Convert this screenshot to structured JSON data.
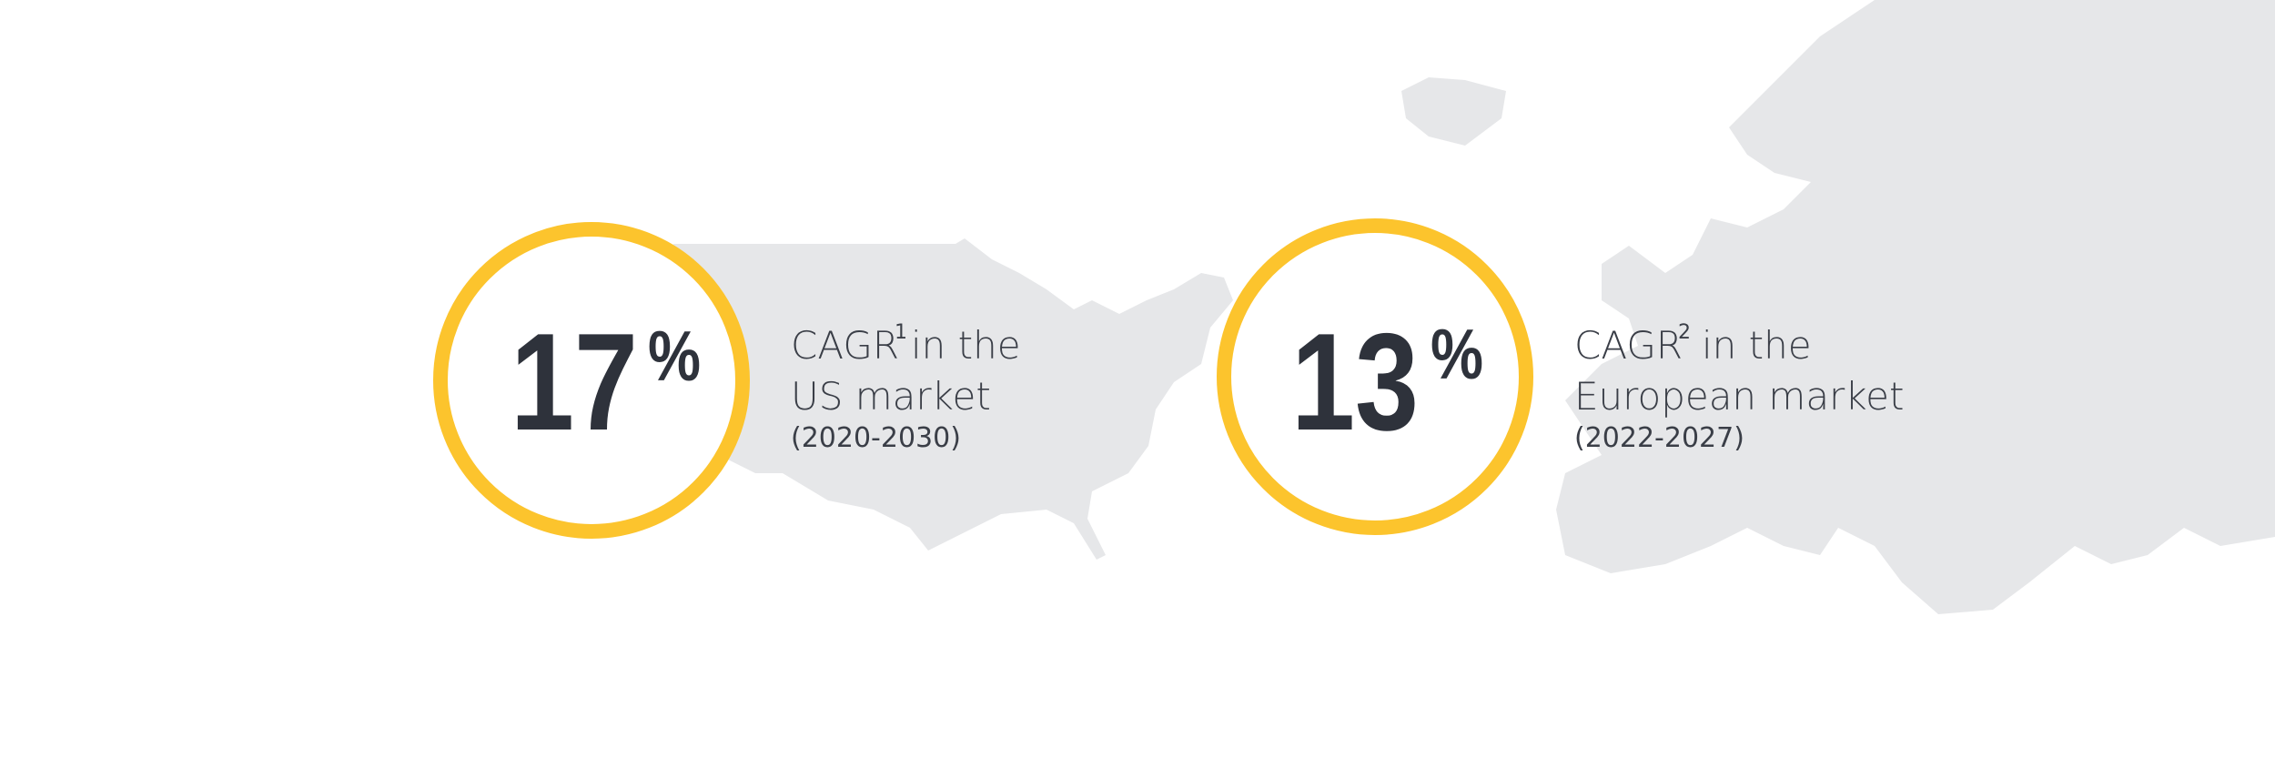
{
  "stats": [
    {
      "number": "17",
      "unit": "%",
      "label": "CAGR",
      "footnote": "1",
      "label_rest": "in the",
      "market": "US market",
      "period": "(2020-2030)"
    },
    {
      "number": "13",
      "unit": "%",
      "label": "CAGR",
      "footnote": "2",
      "label_rest": "in the",
      "market": "European market",
      "period": "(2022-2027)"
    }
  ]
}
